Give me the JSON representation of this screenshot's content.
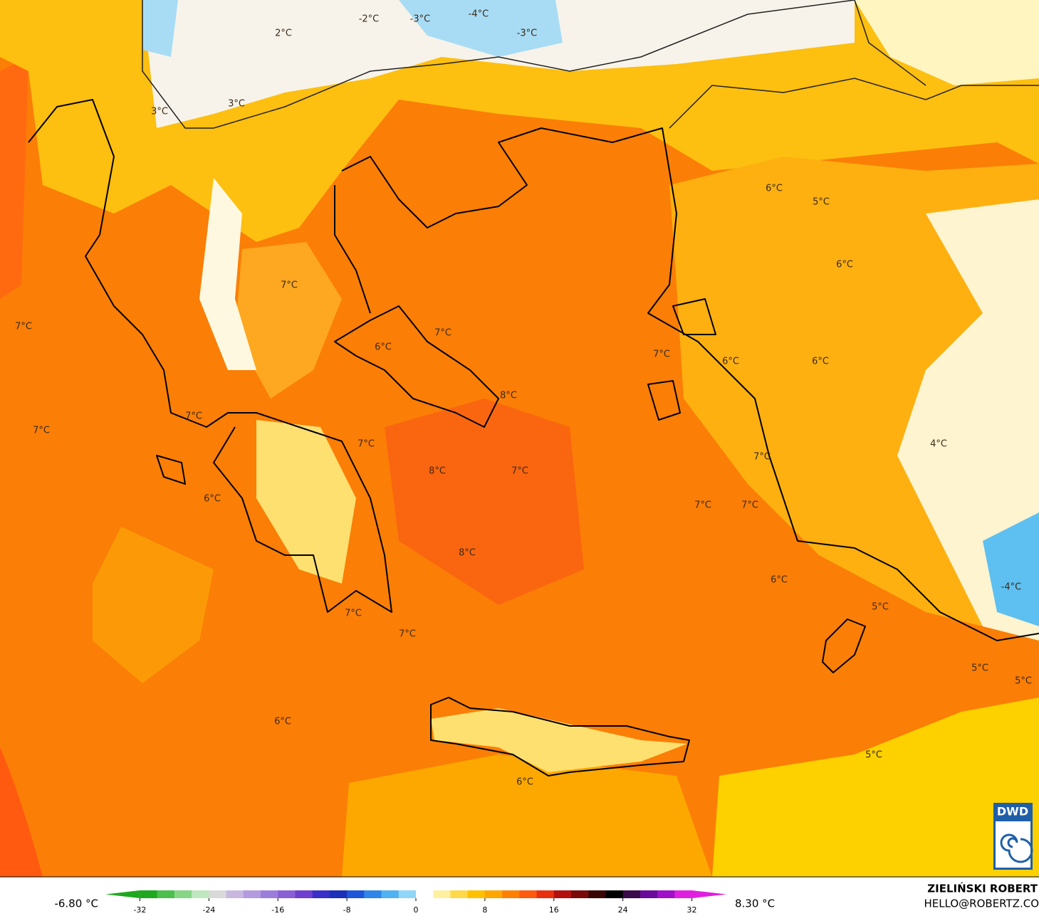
{
  "map_labels": [
    "-2°C",
    "-3°C",
    "-4°C",
    "-3°C",
    "2°C",
    "3°C",
    "3°C",
    "6°C",
    "5°C",
    "6°C",
    "7°C",
    "7°C",
    "7°C",
    "6°C",
    "7°C",
    "6°C",
    "6°C",
    "8°C",
    "7°C",
    "7°C",
    "7°C",
    "4°C",
    "7°C",
    "8°C",
    "7°C",
    "6°C",
    "7°C",
    "7°C",
    "8°C",
    "6°C",
    "-4°C",
    "5°C",
    "7°C",
    "7°C",
    "5°C",
    "5°C",
    "6°C",
    "5°C",
    "6°C"
  ],
  "legend": {
    "min_label": "-6.80 °C",
    "max_label": "8.30 °C",
    "lim": [
      -36,
      36
    ],
    "ticks": [
      -32,
      -24,
      -16,
      -8,
      0,
      8,
      16,
      24,
      32
    ],
    "step": 2,
    "colors": [
      "#1fa81f",
      "#4cbf4c",
      "#86d686",
      "#bfe8bf",
      "#d9d9d9",
      "#c8b8e0",
      "#b49be0",
      "#9d7ddc",
      "#8a5fd6",
      "#6f3fd0",
      "#3a2fc8",
      "#1b2fb8",
      "#1f55d8",
      "#2f86e8",
      "#4fb2f2",
      "#8fd6f8",
      "#ffffff",
      "#fff0a0",
      "#ffd84a",
      "#ffc000",
      "#ffa500",
      "#ff8000",
      "#ff5a10",
      "#e8300f",
      "#b31010",
      "#7a0a0a",
      "#3a0505",
      "#000000",
      "#3a0a4a",
      "#6a0a9a",
      "#a010c8",
      "#e020e0"
    ]
  },
  "author": "ZIELIŃSKI ROBERT",
  "email": "HELLO@ROBERTZ.CO",
  "logo": "DWD"
}
